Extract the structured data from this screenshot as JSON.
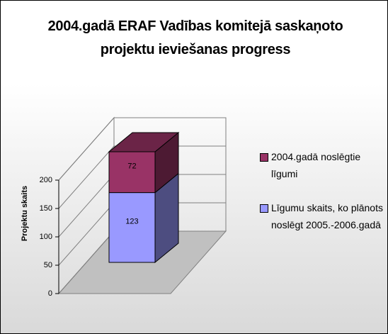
{
  "chart_data": {
    "type": "bar3d_stacked",
    "title": "2004.gadā ERAF Vadības komitejā saskaņoto projektu ieviešanas progress",
    "y_label": "Projektu skaits",
    "categories": [
      null
    ],
    "series": [
      {
        "name": "Līgumu skaits, ko plānots noslēgt 2005.-2006.gadā",
        "color": "#9999ff",
        "values": [
          123
        ]
      },
      {
        "name": "2004.gadā noslēgtie līgumi",
        "color": "#993366",
        "values": [
          72
        ]
      }
    ],
    "ylim": [
      0,
      200
    ],
    "yticks": [
      0,
      50,
      100,
      150,
      200
    ],
    "grid": true,
    "legend": "right"
  }
}
